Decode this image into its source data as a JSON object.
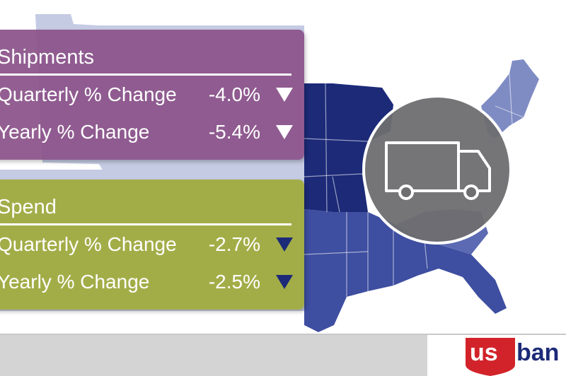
{
  "shipments": {
    "title": "Shipments",
    "quarterly_label": "Quarterly % Change",
    "quarterly_value": "-4.0%",
    "yearly_label": "Yearly % Change",
    "yearly_value": "-5.4%",
    "panel_color": "#8a5189",
    "arrow_color": "#ffffff"
  },
  "spend": {
    "title": "Spend",
    "quarterly_label": "Quarterly % Change",
    "quarterly_value": "-2.7%",
    "yearly_label": "Yearly % Change",
    "yearly_value": "-2.5%",
    "panel_color": "#a0aa3c",
    "arrow_color": "#1c2a78"
  },
  "map": {
    "dark_region_color": "#1c2a78",
    "mid_region_color": "#3e4ea0",
    "light_region_color": "#7f8cc4",
    "pale_region_color": "#c5cbe3"
  },
  "badge": {
    "icon": "truck-icon",
    "circle_color": "#6e6e70"
  },
  "logo": {
    "text_us": "us",
    "text_bank": "ban",
    "red": "#d2232a",
    "navy": "#1c2a78"
  }
}
